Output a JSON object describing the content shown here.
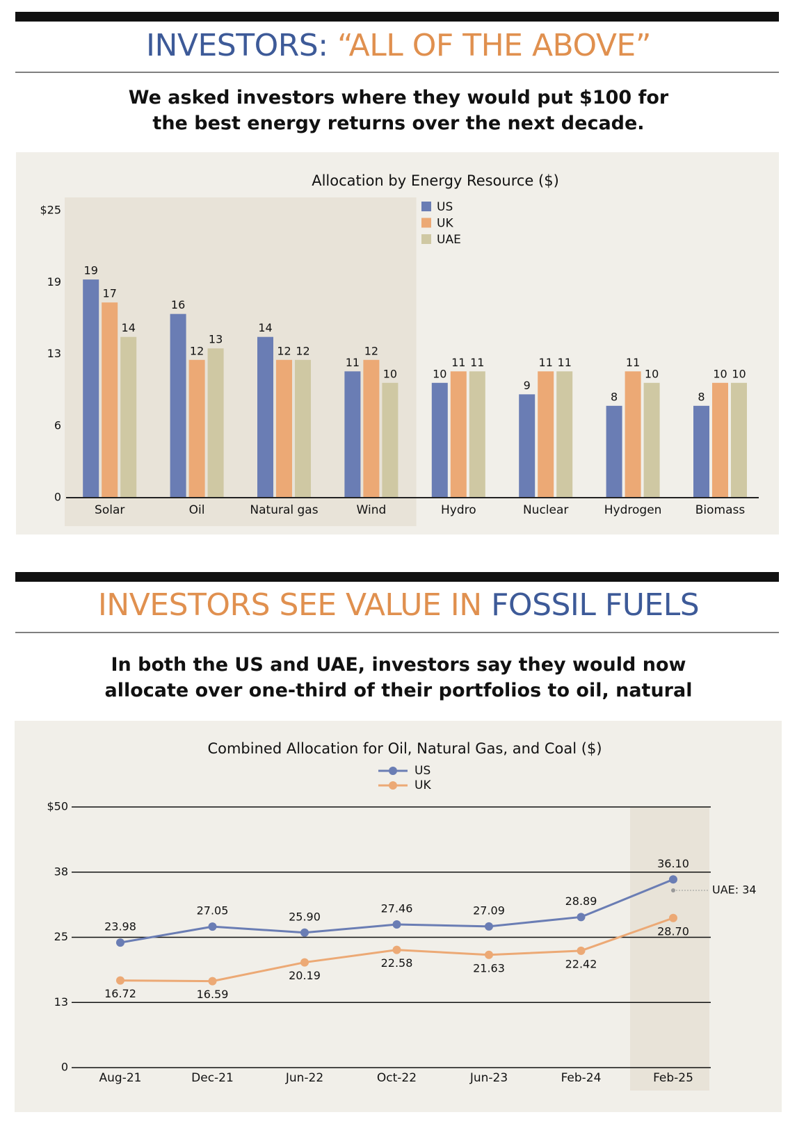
{
  "sections": [
    {
      "title": [
        {
          "text": "INVESTORS: ",
          "color": "#3d5a98"
        },
        {
          "text": "“ALL OF THE ABOVE”",
          "color": "#e0904f"
        }
      ],
      "subtitle": "We asked investors where they would put $100 for the best energy returns over the next decade."
    },
    {
      "title": [
        {
          "text": "INVESTORS SEE VALUE IN ",
          "color": "#e0904f"
        },
        {
          "text": "FOSSIL FUELS",
          "color": "#3d5a98"
        }
      ],
      "subtitle": "In both the US and UAE, investors say they would now allocate over one-third of their portfolios to oil, natural gas and, surprisingly, coal."
    }
  ],
  "chart_data": [
    {
      "type": "bar",
      "title": "Allocation by Energy Resource ($)",
      "categories": [
        "Solar",
        "Oil",
        "Natural gas",
        "Wind",
        "Hydro",
        "Nuclear",
        "Hydrogen",
        "Biomass"
      ],
      "series": [
        {
          "name": "US",
          "color": "#6a7db4",
          "values": [
            19,
            16,
            14,
            11,
            10,
            9,
            8,
            8
          ]
        },
        {
          "name": "UK",
          "color": "#eca975",
          "values": [
            17,
            12,
            12,
            12,
            11,
            11,
            11,
            10
          ]
        },
        {
          "name": "UAE",
          "color": "#cfc8a3",
          "values": [
            14,
            13,
            12,
            10,
            11,
            11,
            10,
            10
          ]
        }
      ],
      "ylim": [
        0,
        25
      ],
      "yticks": [
        0,
        {
          "value": 6.25,
          "label": "6"
        },
        {
          "value": 12.5,
          "label": "13"
        },
        {
          "value": 18.75,
          "label": "19"
        },
        {
          "value": 25,
          "label": "$25"
        }
      ],
      "grid": false,
      "shaded_range": [
        0,
        3
      ],
      "legend": "top-left"
    },
    {
      "type": "line",
      "title": "Combined Allocation for Oil, Natural Gas, and Coal ($)",
      "categories": [
        "Aug-21",
        "Dec-21",
        "Jun-22",
        "Oct-22",
        "Jun-23",
        "Feb-24",
        "Feb-25"
      ],
      "series": [
        {
          "name": "US",
          "color": "#6a7db4",
          "values": [
            23.98,
            27.05,
            25.9,
            27.46,
            27.09,
            28.89,
            36.1
          ],
          "value_labels": [
            "23.98",
            "27.05",
            "25.90",
            "27.46",
            "27.09",
            "28.89",
            "36.10"
          ]
        },
        {
          "name": "UK",
          "color": "#eca975",
          "values": [
            16.72,
            16.59,
            20.19,
            22.58,
            21.63,
            22.42,
            28.7
          ],
          "value_labels": [
            "16.72",
            "16.59",
            "20.19",
            "22.58",
            "21.63",
            "22.42",
            "28.70"
          ]
        }
      ],
      "ylim": [
        0,
        50
      ],
      "yticks": [
        0,
        {
          "value": 12.5,
          "label": "13"
        },
        25,
        {
          "value": 37.5,
          "label": "38"
        },
        {
          "value": 50,
          "label": "$50"
        }
      ],
      "grid": true,
      "shaded_range": [
        6,
        6
      ],
      "legend": "top-center",
      "annotation": {
        "text": "UAE: 34",
        "value": 34,
        "category": 6
      }
    }
  ]
}
